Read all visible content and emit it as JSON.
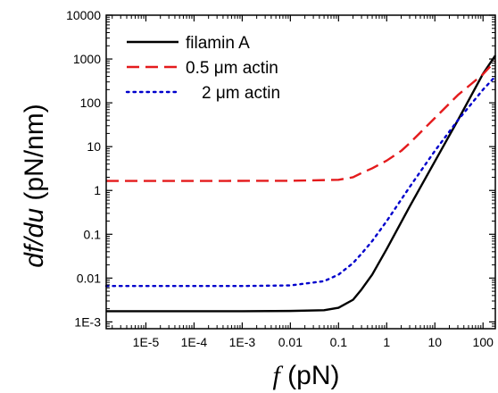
{
  "chart_data": {
    "type": "line",
    "xlabel": {
      "var": "f",
      "unit": " (pN)"
    },
    "ylabel": {
      "var": "df/du",
      "unit": " (pN/nm)"
    },
    "xscale": "log",
    "yscale": "log",
    "xlim": [
      1.5e-06,
      180
    ],
    "ylim": [
      0.0007,
      10000
    ],
    "x_ticks": [
      {
        "value": 1e-05,
        "label": "1E-5"
      },
      {
        "value": 0.0001,
        "label": "1E-4"
      },
      {
        "value": 0.001,
        "label": "1E-3"
      },
      {
        "value": 0.01,
        "label": "0.01"
      },
      {
        "value": 0.1,
        "label": "0.1"
      },
      {
        "value": 1,
        "label": "1"
      },
      {
        "value": 10,
        "label": "10"
      },
      {
        "value": 100,
        "label": "100"
      }
    ],
    "y_ticks": [
      {
        "value": 0.001,
        "label": "1E-3"
      },
      {
        "value": 0.01,
        "label": "0.01"
      },
      {
        "value": 0.1,
        "label": "0.1"
      },
      {
        "value": 1,
        "label": "1"
      },
      {
        "value": 10,
        "label": "10"
      },
      {
        "value": 100,
        "label": "100"
      },
      {
        "value": 1000,
        "label": "1000"
      },
      {
        "value": 10000,
        "label": "10000"
      }
    ],
    "legend_position": "top-left",
    "grid": false,
    "series": [
      {
        "name": "filamin A",
        "color": "#000000",
        "style": "solid",
        "x": [
          1.5e-06,
          1e-05,
          0.0001,
          0.001,
          0.01,
          0.05,
          0.1,
          0.2,
          0.3,
          0.5,
          1,
          3,
          10,
          30,
          100,
          180
        ],
        "y": [
          0.00175,
          0.00175,
          0.00175,
          0.00175,
          0.00178,
          0.00185,
          0.0021,
          0.0032,
          0.0055,
          0.012,
          0.046,
          0.43,
          4.6,
          40,
          460,
          1200
        ]
      },
      {
        "name": "0.5 μm actin",
        "color": "#e41a1c",
        "style": "dashed",
        "x": [
          1.5e-06,
          0.0001,
          0.01,
          0.1,
          0.2,
          0.3,
          0.5,
          1,
          2,
          3,
          5,
          10,
          30,
          100,
          180
        ],
        "y": [
          1.65,
          1.65,
          1.66,
          1.75,
          2.0,
          2.5,
          3.2,
          4.8,
          8.0,
          12,
          21,
          45,
          150,
          450,
          900
        ]
      },
      {
        "name": "2 μm actin",
        "color": "#0000cc",
        "style": "dotted",
        "x": [
          1.5e-06,
          0.0001,
          0.001,
          0.01,
          0.05,
          0.1,
          0.2,
          0.3,
          0.5,
          1,
          3,
          10,
          30,
          100,
          180
        ],
        "y": [
          0.0066,
          0.0066,
          0.0066,
          0.0068,
          0.0085,
          0.012,
          0.022,
          0.036,
          0.07,
          0.2,
          1.2,
          8,
          40,
          200,
          400
        ]
      }
    ]
  }
}
